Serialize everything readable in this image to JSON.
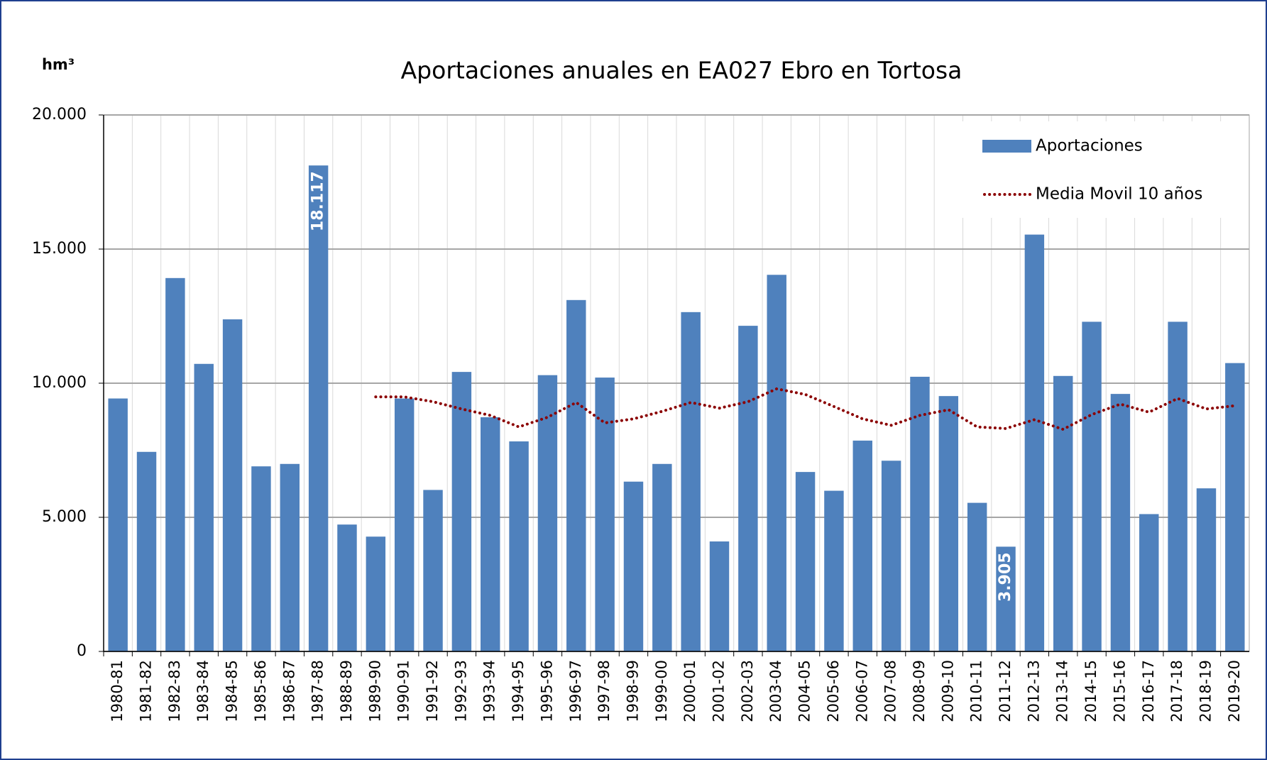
{
  "chart_data": {
    "type": "bar",
    "title": "Aportaciones anuales en EA027 Ebro en Tortosa",
    "y_label": "hm³",
    "categories": [
      "1980-81",
      "1981-82",
      "1982-83",
      "1983-84",
      "1984-85",
      "1985-86",
      "1986-87",
      "1987-88",
      "1988-89",
      "1989-90",
      "1990-91",
      "1991-92",
      "1992-93",
      "1993-94",
      "1994-95",
      "1995-96",
      "1996-97",
      "1997-98",
      "1998-99",
      "1999-00",
      "2000-01",
      "2001-02",
      "2002-03",
      "2003-04",
      "2004-05",
      "2005-06",
      "2006-07",
      "2007-08",
      "2008-09",
      "2009-10",
      "2010-11",
      "2011-12",
      "2012-13",
      "2013-14",
      "2014-15",
      "2015-16",
      "2016-17",
      "2017-18",
      "2018-19",
      "2019-20"
    ],
    "series": [
      {
        "name": "Aportaciones",
        "type": "bar",
        "color": "#4f81bd",
        "values": [
          9430,
          7440,
          13920,
          10720,
          12380,
          6900,
          6990,
          18117,
          4730,
          4280,
          9430,
          6020,
          10420,
          8730,
          7830,
          10300,
          13100,
          10210,
          6330,
          6990,
          12650,
          4100,
          12140,
          14040,
          6690,
          5990,
          7860,
          7110,
          10240,
          9520,
          5540,
          3905,
          15540,
          10270,
          12290,
          9600,
          5120,
          12290,
          6080,
          10750
        ],
        "value_labels": [
          null,
          null,
          null,
          null,
          null,
          null,
          null,
          "18.117",
          null,
          null,
          null,
          null,
          null,
          null,
          null,
          null,
          null,
          null,
          null,
          null,
          null,
          null,
          null,
          null,
          null,
          null,
          null,
          null,
          null,
          null,
          null,
          "3.905",
          null,
          null,
          null,
          null,
          null,
          null,
          null,
          null
        ]
      },
      {
        "name": "Media Movil 10 años",
        "type": "line",
        "color": "#8b0000",
        "values": [
          null,
          null,
          null,
          null,
          null,
          null,
          null,
          null,
          null,
          9490,
          9490,
          9310,
          9040,
          8800,
          8370,
          8730,
          9280,
          8520,
          8670,
          8950,
          9280,
          9070,
          9310,
          9790,
          9580,
          9130,
          8670,
          8430,
          8800,
          9010,
          8370,
          8310,
          8640,
          8280,
          8830,
          9220,
          8920,
          9430,
          9040,
          9160
        ]
      }
    ],
    "ylim": [
      0,
      20000
    ],
    "yticks": [
      0,
      {
        "value": 5000,
        "label": "5.000"
      },
      {
        "value": 10000,
        "label": "10.000"
      },
      {
        "value": 15000,
        "label": "15.000"
      },
      {
        "value": 20000,
        "label": "20.000"
      }
    ],
    "grid": true,
    "legend": "upper-right"
  }
}
